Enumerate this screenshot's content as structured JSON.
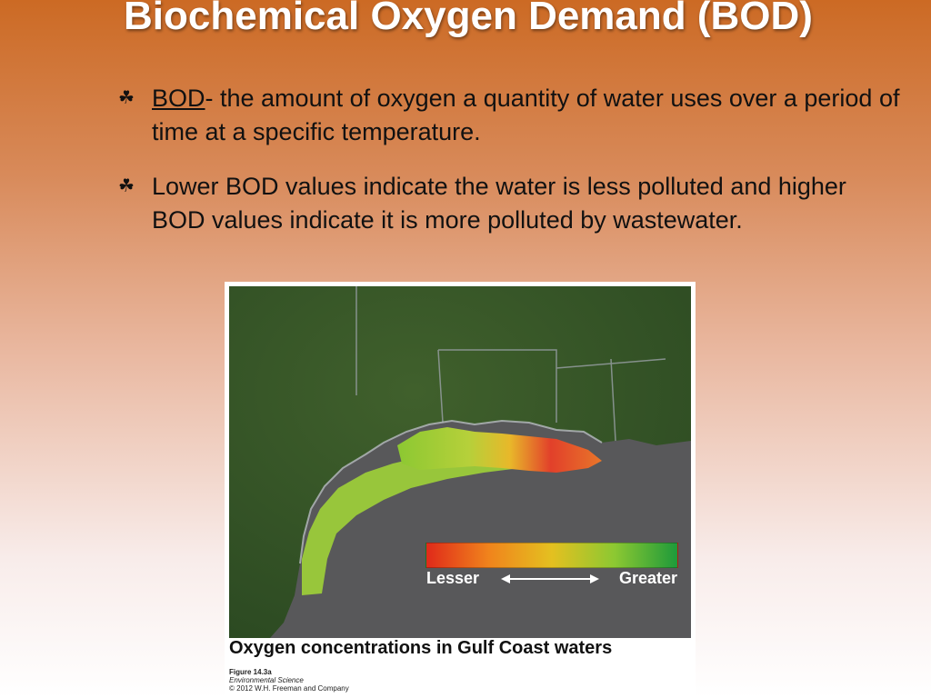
{
  "slide": {
    "title": "Biochemical Oxygen Demand (BOD)",
    "bullets": [
      {
        "term": "BOD",
        "text": "- the amount of oxygen a quantity of water uses over a period of time at a specific temperature."
      },
      {
        "text": "Lower BOD values indicate the water is less polluted and higher BOD values indicate it is more polluted by wastewater."
      }
    ],
    "bullet_marker_icon": "leaf-bullet-icon"
  },
  "figure": {
    "legend": {
      "lesser": "Lesser",
      "greater": "Greater"
    },
    "caption": "Oxygen concentrations in Gulf Coast waters",
    "number": "Figure 14.3a",
    "book": "Environmental Science",
    "copyright": "© 2012 W.H. Freeman and Company"
  },
  "colors": {
    "legend_low": "#e02a1a",
    "legend_mid": "#e4c020",
    "legend_high": "#1e9a3a",
    "gulf_water": "#58585a",
    "land": "#3a5e2a"
  }
}
